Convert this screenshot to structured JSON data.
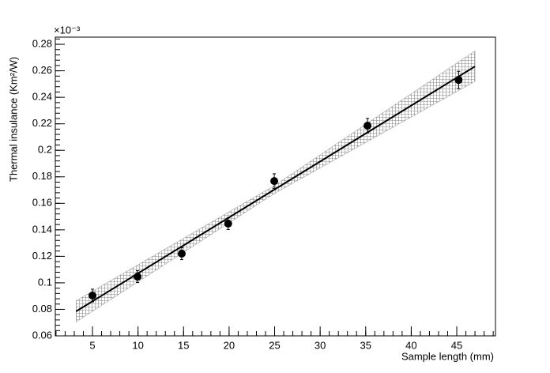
{
  "chart_data": {
    "type": "scatter",
    "x_label": "Sample length (mm)",
    "y_label": "Thermal insulance (Km²/W)",
    "y_exponent": "×10⁻³",
    "x": [
      5,
      9.95,
      14.8,
      19.9,
      24.96,
      35.2,
      45.2
    ],
    "values": [
      0.0904,
      0.1047,
      0.122,
      0.1447,
      0.1768,
      0.2186,
      0.2531
    ],
    "errors": [
      0.0048,
      0.0045,
      0.0045,
      0.0045,
      0.0055,
      0.0055,
      0.0065
    ],
    "color": "#000000",
    "fit": {
      "x": [
        3.2,
        47
      ],
      "values": [
        0.0785,
        0.2633
      ],
      "color": "#000000"
    },
    "band": {
      "x": [
        3.2,
        25,
        47
      ],
      "lower": [
        0.0705,
        0.1675,
        0.252
      ],
      "upper": [
        0.0865,
        0.1735,
        0.275
      ],
      "color": "#888888"
    },
    "xlim": [
      0.92,
      49.25
    ],
    "ylim": [
      0.06,
      0.2854
    ],
    "xticks": [
      5,
      10,
      15,
      20,
      25,
      30,
      35,
      40,
      45
    ],
    "yticks": [
      0.06,
      0.08,
      0.1,
      0.12,
      0.14,
      0.16,
      0.18,
      0.2,
      0.22,
      0.24,
      0.26,
      0.28
    ],
    "minor_per_major": 5
  }
}
